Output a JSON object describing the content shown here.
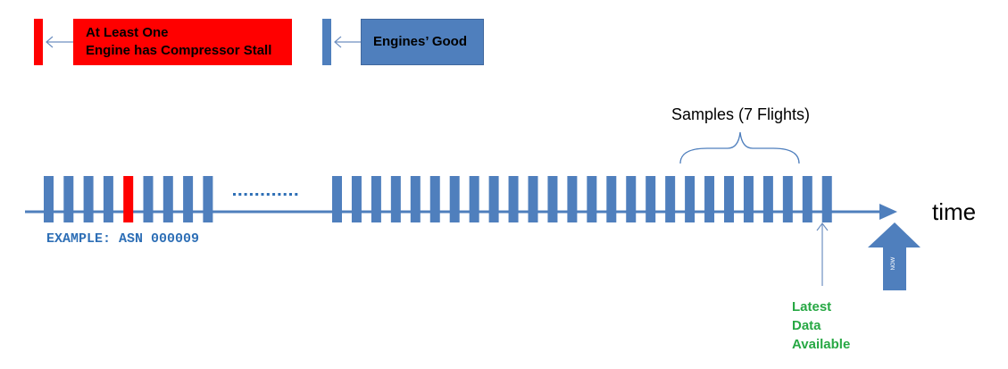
{
  "legend": {
    "stall": {
      "line1": "At Least One",
      "line2": "Engine has Compressor Stall",
      "color": "#ff0000"
    },
    "good": {
      "label": "Engines’ Good",
      "color": "#4f7fbd"
    }
  },
  "samples_label": "Samples (7 Flights)",
  "time_label": "time",
  "example_label": "EXAMPLE: ASN 000009",
  "latest_label": {
    "line1": "Latest",
    "line2": "Data",
    "line3": "Available",
    "color": "#27a844"
  },
  "now_label": "NOW",
  "axis_color": "#4f7fbd",
  "bars": {
    "group1": [
      "good",
      "good",
      "good",
      "good",
      "stall",
      "good",
      "good",
      "good",
      "good"
    ],
    "group2_count": 26,
    "sample_count": 7
  },
  "ellipsis_color": "#2e6fb6"
}
